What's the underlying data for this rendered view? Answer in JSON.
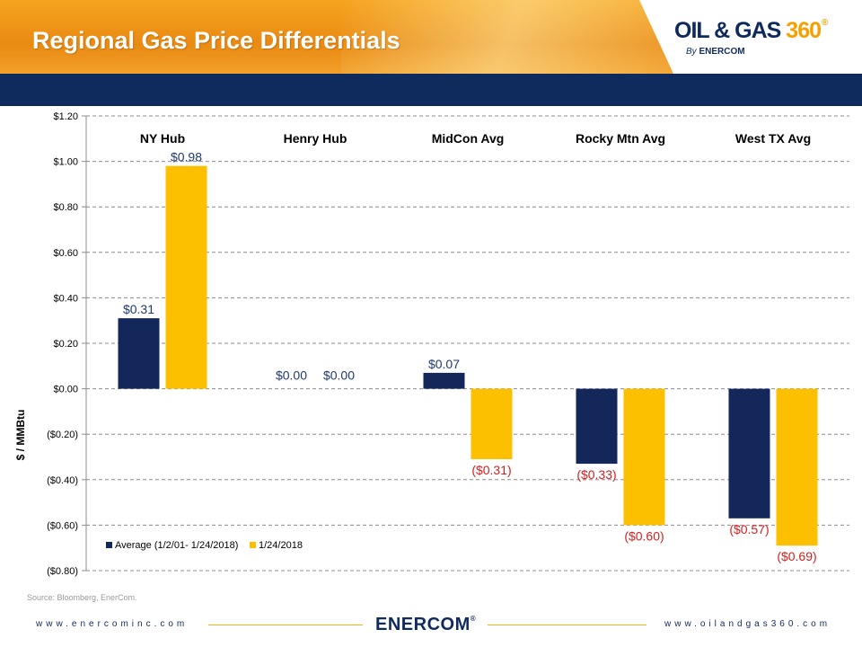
{
  "header": {
    "title": "Regional Gas Price Differentials",
    "logo_main": "OIL & GAS",
    "logo_360": "360",
    "logo_reg": "®",
    "logo_by": "By",
    "logo_brand": "ENERCOM"
  },
  "colors": {
    "average": "#13275b",
    "current": "#fdc000",
    "negative_label": "#d01f1f",
    "positive_label": "#1f3a6e",
    "header_orange": "#f39a1a",
    "navy_band": "#0f2a5c"
  },
  "chart_data": {
    "type": "bar",
    "ylabel": "$ / MMBtu",
    "ylim": [
      -0.8,
      1.2
    ],
    "yticks": [
      "$1.20",
      "$1.00",
      "$0.80",
      "$0.60",
      "$0.40",
      "$0.20",
      "$0.00",
      "($0.20)",
      "($0.40)",
      "($0.60)",
      "($0.80)"
    ],
    "ytick_values": [
      1.2,
      1.0,
      0.8,
      0.6,
      0.4,
      0.2,
      0.0,
      -0.2,
      -0.4,
      -0.6,
      -0.8
    ],
    "grid": true,
    "legend_position": "bottom-left",
    "categories": [
      "NY Hub",
      "Henry Hub",
      "MidCon Avg",
      "Rocky Mtn Avg",
      "West TX Avg"
    ],
    "series": [
      {
        "name": "Average (1/2/01- 1/24/2018)",
        "values": [
          0.31,
          0.0,
          0.07,
          -0.33,
          -0.57
        ],
        "labels": [
          "$0.31",
          "$0.00",
          "$0.07",
          "($0.33)",
          "($0.57)"
        ]
      },
      {
        "name": "1/24/2018",
        "values": [
          0.98,
          0.0,
          -0.31,
          -0.6,
          -0.69
        ],
        "labels": [
          "$0.98",
          "$0.00",
          "($0.31)",
          "($0.60)",
          "($0.69)"
        ]
      }
    ]
  },
  "source": "Source: Bloomberg, EnerCom.",
  "footer": {
    "left_url": "www.enercominc.com",
    "right_url": "www.oilandgas360.com",
    "brand": "ENERCOM",
    "brand_reg": "®"
  }
}
